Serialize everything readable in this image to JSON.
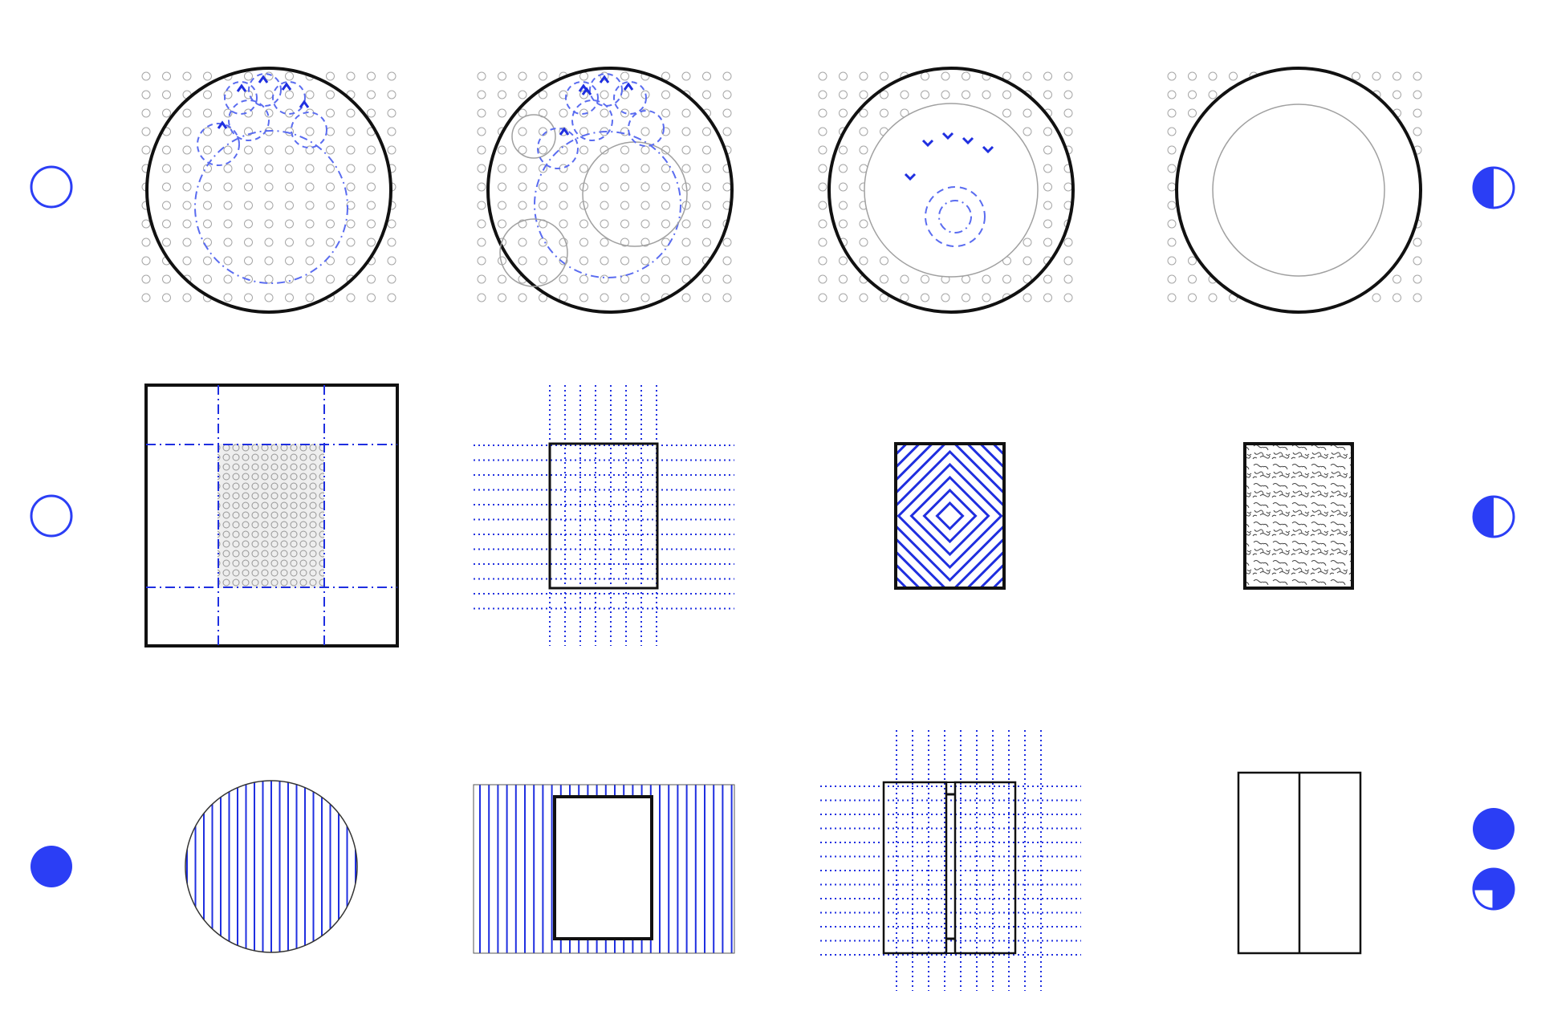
{
  "colors": {
    "accent": "#2b3ef5",
    "line_blue": "#1f2fe0",
    "dash_blue": "#5a6cf0",
    "black": "#111111",
    "grey": "#a6a6a6",
    "white": "#ffffff"
  },
  "rows": [
    {
      "row": "circular-plans",
      "marker_left": "empty-circle-icon",
      "marker_right": [
        "half-filled-circle-icon"
      ],
      "panels": [
        "dot-grid-with-clustered-blue-circles",
        "dot-grid-with-mixed-circles",
        "dot-grid-with-inner-ring-and-arrows",
        "dot-grid-with-plain-ring"
      ]
    },
    {
      "row": "rectangular-plans",
      "marker_left": "empty-circle-icon",
      "marker_right": [
        "half-filled-circle-icon"
      ],
      "panels": [
        "square-with-dash-dot-axes-and-texture",
        "rectangle-on-dotted-grid",
        "rectangle-with-chevron-hatch",
        "rectangle-with-noise-texture"
      ]
    },
    {
      "row": "striped-and-split",
      "marker_left": "filled-circle-icon",
      "marker_right": [
        "filled-circle-icon",
        "quarter-empty-circle-icon"
      ],
      "panels": [
        "circle-with-vertical-stripes",
        "rectangle-on-vertical-stripes",
        "split-rectangle-on-dotted-grid",
        "split-rectangle-plain"
      ]
    }
  ]
}
